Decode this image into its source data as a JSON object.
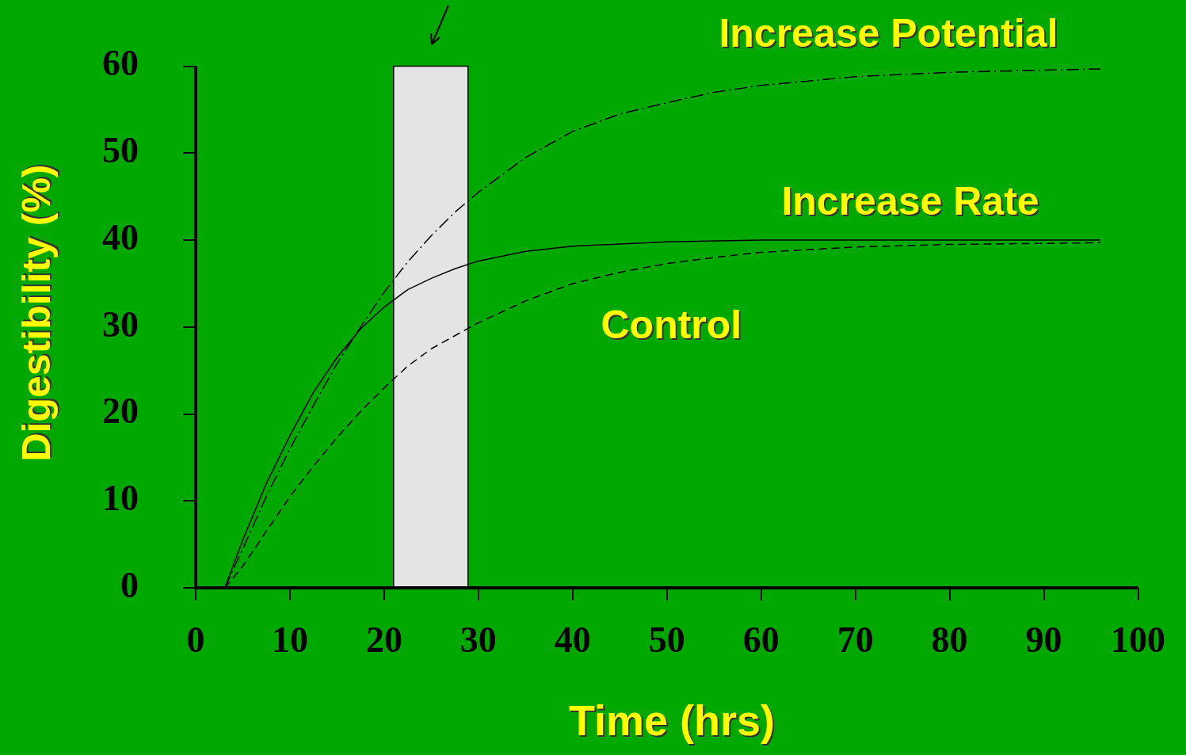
{
  "chart_data": {
    "type": "line",
    "xlabel": "Time (hrs)",
    "ylabel": "Digestibility (%)",
    "xlim": [
      0,
      100
    ],
    "xticks": [
      0,
      10,
      20,
      30,
      40,
      50,
      60,
      70,
      80,
      90,
      100
    ],
    "ylim": [
      0,
      60
    ],
    "yticks": [
      0,
      10,
      20,
      30,
      40,
      50,
      60
    ],
    "marker": "none",
    "bands": [
      {
        "axis": "x",
        "from": 21,
        "to": 28.9,
        "color": "#e4e4e4"
      }
    ],
    "series": [
      {
        "name": "Increase Potential",
        "color": "#000000",
        "line_style": "dashdot",
        "x": [
          3.1,
          5,
          7.5,
          10,
          12.5,
          15,
          17.5,
          20,
          22.5,
          25,
          27.5,
          30,
          35,
          40,
          45,
          50,
          55,
          60,
          70,
          80,
          96
        ],
        "values": [
          0,
          4.5,
          10.5,
          16,
          21,
          25.8,
          30,
          34,
          37.5,
          40.5,
          43.2,
          45.5,
          49.5,
          52.5,
          54.5,
          55.8,
          57,
          57.8,
          58.8,
          59.3,
          59.7
        ]
      },
      {
        "name": "Increase Rate",
        "color": "#000000",
        "line_style": "solid",
        "x": [
          3.1,
          5,
          7.5,
          10,
          12.5,
          15,
          17.5,
          20,
          22.5,
          25,
          27.5,
          30,
          35,
          40,
          50,
          60,
          96
        ],
        "values": [
          0,
          5.5,
          12,
          17.5,
          22.5,
          26.5,
          29.8,
          32.3,
          34.3,
          35.6,
          36.7,
          37.6,
          38.7,
          39.3,
          39.8,
          40,
          40
        ]
      },
      {
        "name": "Control",
        "color": "#000000",
        "line_style": "dashed",
        "x": [
          3.1,
          5,
          7.5,
          10,
          12.5,
          15,
          17.5,
          20,
          22.5,
          25,
          27.5,
          30,
          35,
          40,
          45,
          50,
          55,
          60,
          70,
          80,
          96
        ],
        "values": [
          0,
          2.5,
          6.5,
          10.5,
          14,
          17.3,
          20.3,
          23,
          25.5,
          27.5,
          29,
          30.5,
          33,
          35,
          36.3,
          37.3,
          38,
          38.6,
          39.2,
          39.5,
          39.7
        ]
      }
    ]
  }
}
